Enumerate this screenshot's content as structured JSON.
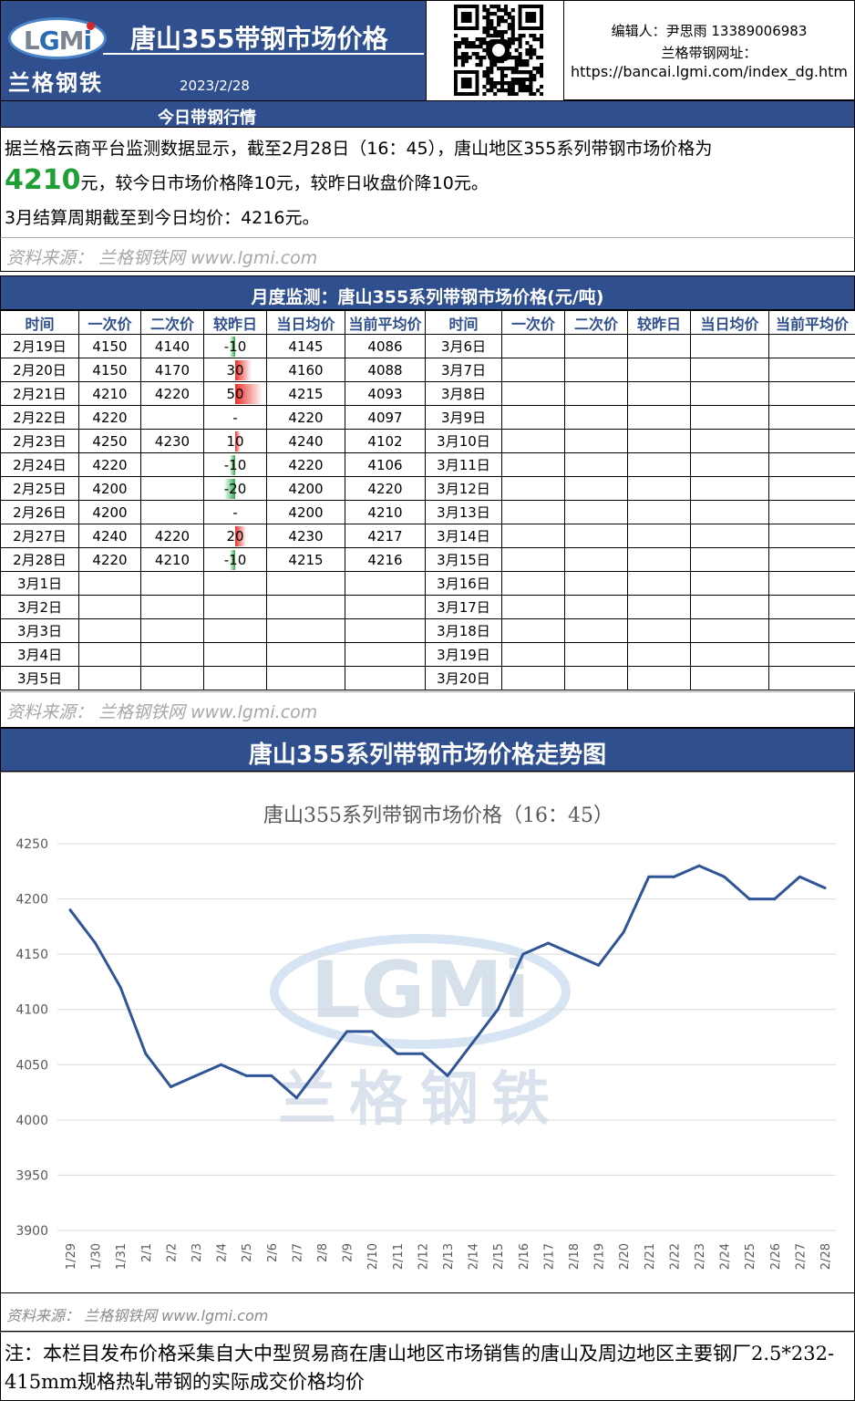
{
  "header": {
    "logo_letters": [
      "L",
      "G",
      "M",
      "i"
    ],
    "logo_cn": "兰格钢铁",
    "title": "唐山355带钢市场价格",
    "date": "2023/2/28",
    "editor": "编辑人：尹思雨 13389006983",
    "site_label": "兰格带钢网址：",
    "site_url": "https://bancai.lgmi.com/index_dg.htm",
    "qr_icon": "wechat-icon"
  },
  "today": {
    "bar_title": "今日带钢行情",
    "line1": "据兰格云商平台监测数据显示，截至2月28日（16：45），唐山地区355系列带钢市场价格为",
    "price": "4210",
    "line2_rest": "元，较今日市场价格降10元，较昨日收盘价降10元。",
    "line3": "3月结算周期截至到今日均价：4216元。",
    "source": "资料来源： 兰格钢铁网 www.lgmi.com"
  },
  "monitor": {
    "bar_title": "月度监测：唐山355系列带钢市场价格(元/吨)",
    "headers": [
      "时间",
      "一次价",
      "二次价",
      "较昨日",
      "当日均价",
      "当前平均价",
      "时间",
      "一次价",
      "二次价",
      "较昨日",
      "当日均价",
      "当前平均价"
    ],
    "left_rows": [
      {
        "date": "2月19日",
        "p1": "4150",
        "p2": "4140",
        "chg": "-10",
        "avg": "4145",
        "cur": "4086"
      },
      {
        "date": "2月20日",
        "p1": "4150",
        "p2": "4170",
        "chg": "30",
        "avg": "4160",
        "cur": "4088"
      },
      {
        "date": "2月21日",
        "p1": "4210",
        "p2": "4220",
        "chg": "50",
        "avg": "4215",
        "cur": "4093"
      },
      {
        "date": "2月22日",
        "p1": "4220",
        "p2": "",
        "chg": "-",
        "avg": "4220",
        "cur": "4097"
      },
      {
        "date": "2月23日",
        "p1": "4250",
        "p2": "4230",
        "chg": "10",
        "avg": "4240",
        "cur": "4102"
      },
      {
        "date": "2月24日",
        "p1": "4220",
        "p2": "",
        "chg": "-10",
        "avg": "4220",
        "cur": "4106"
      },
      {
        "date": "2月25日",
        "p1": "4200",
        "p2": "",
        "chg": "-20",
        "avg": "4200",
        "cur": "4220"
      },
      {
        "date": "2月26日",
        "p1": "4200",
        "p2": "",
        "chg": "-",
        "avg": "4200",
        "cur": "4210"
      },
      {
        "date": "2月27日",
        "p1": "4240",
        "p2": "4220",
        "chg": "20",
        "avg": "4230",
        "cur": "4217"
      },
      {
        "date": "2月28日",
        "p1": "4220",
        "p2": "4210",
        "chg": "-10",
        "avg": "4215",
        "cur": "4216"
      },
      {
        "date": "3月1日",
        "p1": "",
        "p2": "",
        "chg": "",
        "avg": "",
        "cur": ""
      },
      {
        "date": "3月2日",
        "p1": "",
        "p2": "",
        "chg": "",
        "avg": "",
        "cur": ""
      },
      {
        "date": "3月3日",
        "p1": "",
        "p2": "",
        "chg": "",
        "avg": "",
        "cur": ""
      },
      {
        "date": "3月4日",
        "p1": "",
        "p2": "",
        "chg": "",
        "avg": "",
        "cur": ""
      },
      {
        "date": "3月5日",
        "p1": "",
        "p2": "",
        "chg": "",
        "avg": "",
        "cur": ""
      }
    ],
    "right_dates": [
      "3月6日",
      "3月7日",
      "3月8日",
      "3月9日",
      "3月10日",
      "3月11日",
      "3月12日",
      "3月13日",
      "3月14日",
      "3月15日",
      "3月16日",
      "3月17日",
      "3月18日",
      "3月19日",
      "3月20日"
    ],
    "source": "资料来源： 兰格钢铁网 www.lgmi.com",
    "colors": {
      "up": "#e8312b",
      "down": "#2fa84f"
    }
  },
  "trend": {
    "bar_title": "唐山355系列带钢市场价格走势图",
    "source": "资料来源： 兰格钢铁网 www.lgmi.com",
    "watermark_letters": "LGMi",
    "watermark_cn": "兰格钢铁"
  },
  "chart_data": {
    "type": "line",
    "title": "唐山355系列带钢市场价格（16：45）",
    "x": [
      "1/29",
      "1/30",
      "1/31",
      "2/1",
      "2/2",
      "2/3",
      "2/4",
      "2/5",
      "2/6",
      "2/7",
      "2/8",
      "2/9",
      "2/10",
      "2/11",
      "2/12",
      "2/13",
      "2/14",
      "2/15",
      "2/16",
      "2/17",
      "2/18",
      "2/19",
      "2/20",
      "2/21",
      "2/22",
      "2/23",
      "2/24",
      "2/25",
      "2/26",
      "2/27",
      "2/28"
    ],
    "series": [
      {
        "values": [
          4190,
          4160,
          4120,
          4060,
          4030,
          4040,
          4050,
          4040,
          4040,
          4020,
          4050,
          4080,
          4080,
          4060,
          4060,
          4040,
          4070,
          4100,
          4150,
          4160,
          4150,
          4140,
          4170,
          4220,
          4220,
          4230,
          4220,
          4200,
          4200,
          4220,
          4210
        ]
      }
    ],
    "ylim": [
      3900,
      4250
    ],
    "yticks": [
      "3900",
      "3950",
      "4000",
      "4050",
      "4100",
      "4150",
      "4200",
      "4250"
    ],
    "grid": true,
    "line_color": "#2f5597"
  },
  "note": "注：本栏目发布价格采集自大中型贸易商在唐山地区市场销售的唐山及周边地区主要钢厂2.5*232-415mm规格热轧带钢的实际成交价格均价"
}
